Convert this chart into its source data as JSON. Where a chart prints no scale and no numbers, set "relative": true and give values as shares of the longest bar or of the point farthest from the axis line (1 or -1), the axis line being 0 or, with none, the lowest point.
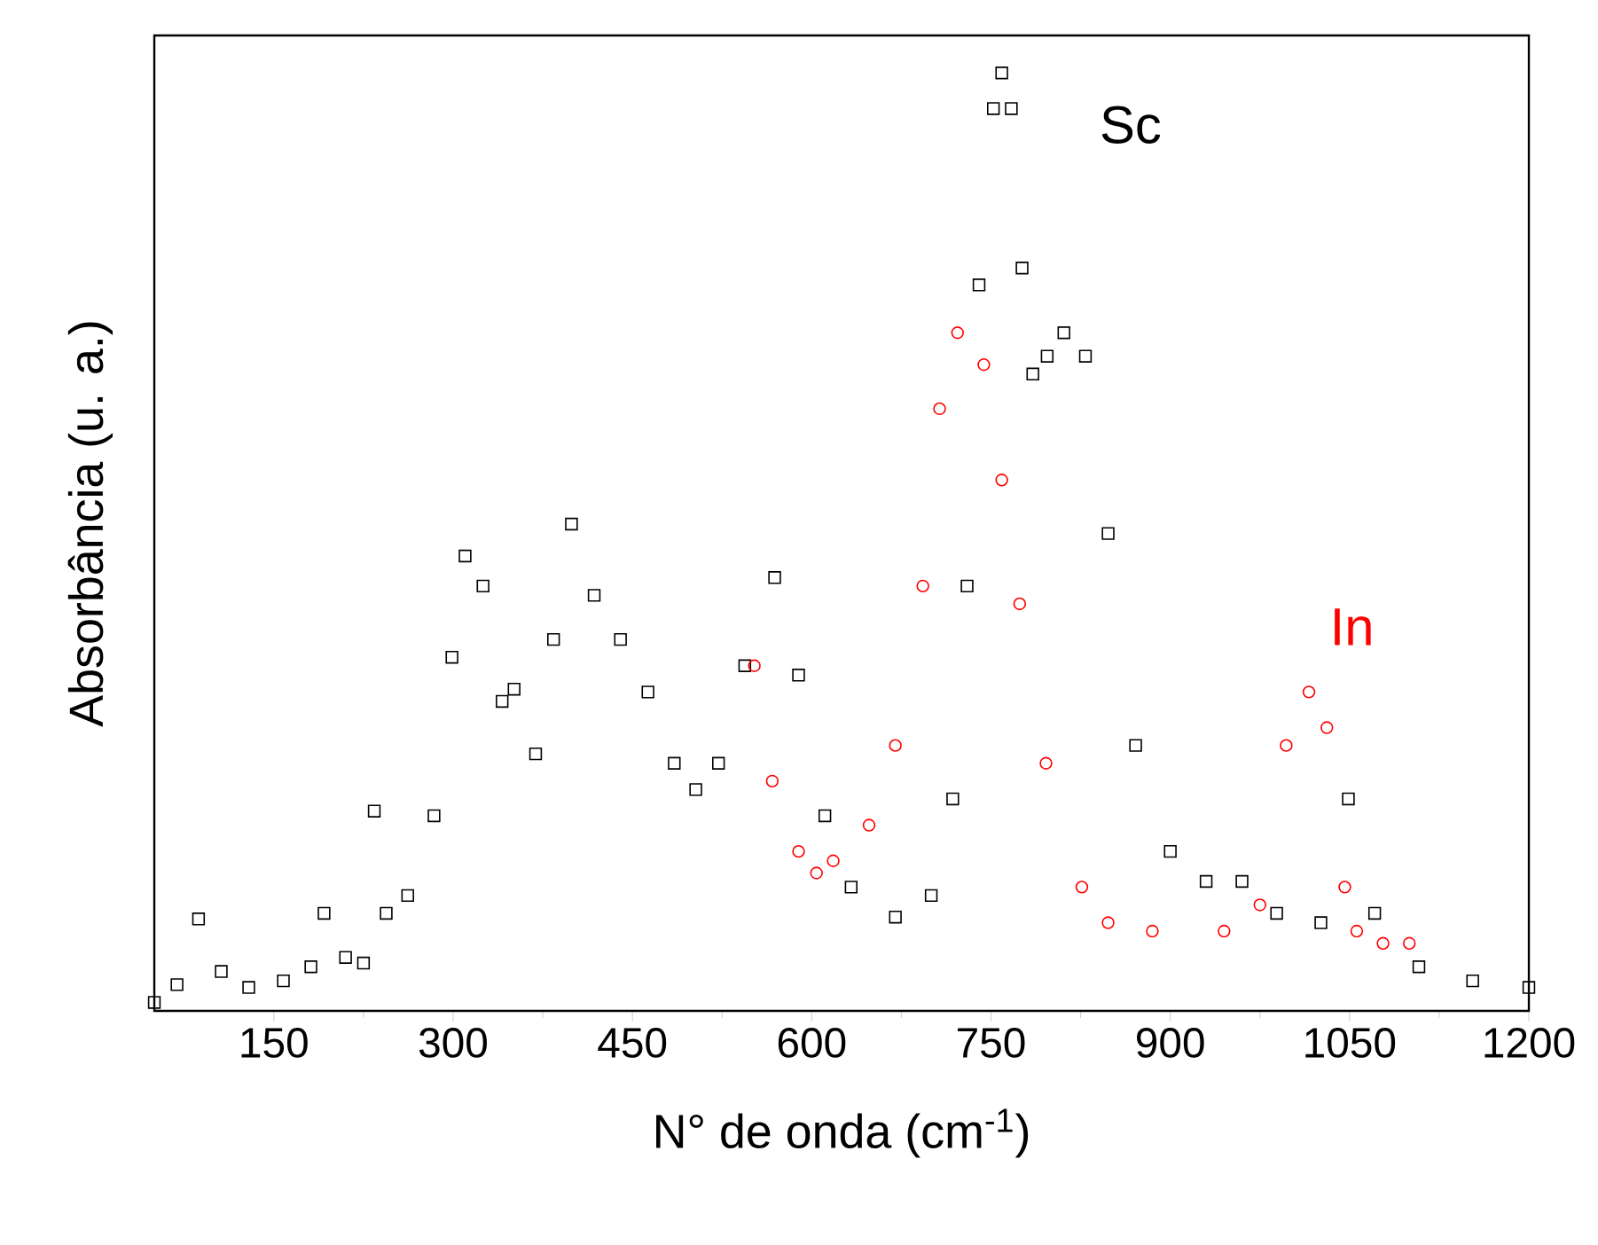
{
  "chart_data": {
    "type": "scatter",
    "relative": true,
    "xlabel": "N° de onda (cm$^{-1}$)",
    "ylabel": "Absorbância (u. a.)",
    "xlim": [
      50,
      1200
    ],
    "xticks": [
      150,
      300,
      450,
      600,
      750,
      900,
      1050,
      1200
    ],
    "series": [
      {
        "name": "Sc",
        "color": "#000000",
        "marker": "square",
        "x": [
          50,
          69,
          87,
          106,
          129,
          158,
          181,
          192,
          210,
          225,
          234,
          244,
          262,
          284,
          299,
          310,
          325,
          341,
          351,
          369,
          384,
          399,
          418,
          440,
          463,
          485,
          503,
          522,
          544,
          569,
          589,
          611,
          633,
          670,
          700,
          718,
          730,
          740,
          752,
          759,
          767,
          776,
          785,
          797,
          811,
          829,
          848,
          871,
          900,
          930,
          960,
          989,
          1026,
          1049,
          1071,
          1108,
          1153,
          1200
        ],
        "values": [
          0.009,
          0.028,
          0.098,
          0.042,
          0.025,
          0.032,
          0.047,
          0.104,
          0.057,
          0.051,
          0.213,
          0.104,
          0.123,
          0.208,
          0.377,
          0.485,
          0.453,
          0.33,
          0.343,
          0.274,
          0.396,
          0.519,
          0.443,
          0.396,
          0.34,
          0.264,
          0.236,
          0.264,
          0.368,
          0.462,
          0.358,
          0.208,
          0.132,
          0.1,
          0.123,
          0.226,
          0.453,
          0.774,
          0.962,
          1.0,
          0.962,
          0.792,
          0.679,
          0.698,
          0.723,
          0.698,
          0.509,
          0.283,
          0.17,
          0.138,
          0.138,
          0.104,
          0.094,
          0.226,
          0.104,
          0.047,
          0.032,
          0.025
        ]
      },
      {
        "name": "In",
        "color": "#ff0000",
        "marker": "circle",
        "x": [
          552,
          567,
          589,
          604,
          618,
          648,
          670,
          693,
          707,
          722,
          744,
          759,
          774,
          796,
          826,
          848,
          885,
          945,
          975,
          997,
          1016,
          1031,
          1046,
          1056,
          1078,
          1100
        ],
        "values": [
          0.368,
          0.245,
          0.17,
          0.147,
          0.16,
          0.198,
          0.283,
          0.453,
          0.642,
          0.723,
          0.689,
          0.566,
          0.434,
          0.264,
          0.132,
          0.094,
          0.085,
          0.085,
          0.113,
          0.283,
          0.34,
          0.302,
          0.132,
          0.085,
          0.072,
          0.072
        ]
      }
    ]
  }
}
